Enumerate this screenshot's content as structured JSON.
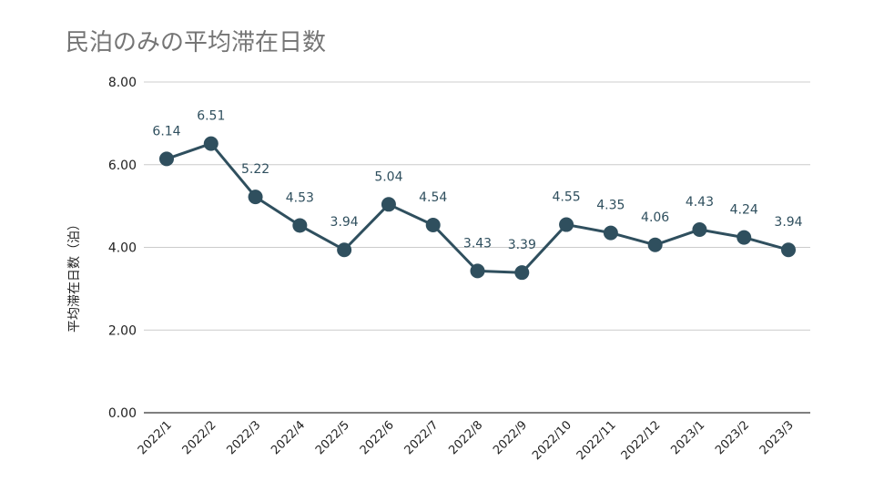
{
  "chart_data": {
    "type": "line",
    "title": "民泊のみの平均滞在日数",
    "xlabel": "",
    "ylabel": "平均滞在日数（泊）",
    "categories": [
      "2022/1",
      "2022/2",
      "2022/3",
      "2022/4",
      "2022/5",
      "2022/6",
      "2022/7",
      "2022/8",
      "2022/9",
      "2022/10",
      "2022/11",
      "2022/12",
      "2023/1",
      "2023/2",
      "2023/3"
    ],
    "series": [
      {
        "name": "平均滞在日数",
        "values": [
          6.14,
          6.51,
          5.22,
          4.53,
          3.94,
          5.04,
          4.54,
          3.43,
          3.39,
          4.55,
          4.35,
          4.06,
          4.43,
          4.24,
          3.94
        ]
      }
    ],
    "data_labels": [
      "6.14",
      "6.51",
      "5.22",
      "4.53",
      "3.94",
      "5.04",
      "4.54",
      "3.43",
      "3.39",
      "4.55",
      "4.35",
      "4.06",
      "4.43",
      "4.24",
      "3.94"
    ],
    "yticks": [
      0,
      2,
      4,
      6,
      8
    ],
    "ytick_labels": [
      "0.00",
      "2.00",
      "4.00",
      "6.00",
      "8.00"
    ],
    "ylim": [
      0,
      8
    ],
    "grid": true,
    "legend": "none",
    "colors": {
      "series": "#2f4f5e",
      "title": "#757575",
      "grid": "#cccccc"
    }
  }
}
